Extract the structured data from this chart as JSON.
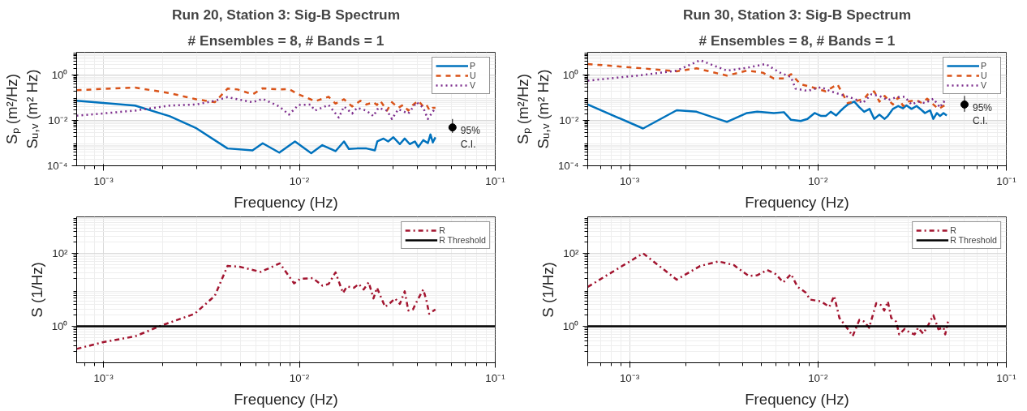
{
  "chart_data": [
    {
      "type": "line",
      "title": "Run 20, Station 3: Sig-B Spectrum",
      "subtitle": "# Ensembles = 8, # Bands = 1",
      "xlabel": "Frequency (Hz)",
      "ylabel": "Sₚ (m²/Hz)\nSᵤ,ᵥ (m² Hz)",
      "log": "xy",
      "grid": true,
      "legend": "top right",
      "xlim": [
        0.00073,
        0.1
      ],
      "ylim": [
        0.0001,
        10
      ],
      "xticks": [
        {
          "value": 0.001,
          "label": "10⁻³"
        },
        {
          "value": 0.01,
          "label": "10⁻²"
        },
        {
          "value": 0.1,
          "label": "10⁻¹"
        }
      ],
      "yticks": [
        {
          "value": 0.0001,
          "label": "10⁻⁴"
        },
        {
          "value": 0.01,
          "label": "10⁻²"
        },
        {
          "value": 1,
          "label": "10⁰"
        }
      ],
      "annotations": [
        {
          "text": "95%\nC.I.",
          "x": 0.0605,
          "y": 0.0049
        }
      ],
      "series": [
        {
          "name": "P",
          "color": "#0072bd",
          "line_style": "solid",
          "x": [
            0.00073,
            0.00145,
            0.00218,
            0.00298,
            0.0043,
            0.00577,
            0.0065,
            0.0079,
            0.0095,
            0.0115,
            0.0131,
            0.0153,
            0.0169,
            0.0179,
            0.0197,
            0.022,
            0.0243,
            0.025,
            0.0269,
            0.0284,
            0.0302,
            0.0326,
            0.0345,
            0.0366,
            0.0389,
            0.0405,
            0.0429,
            0.0453,
            0.0467,
            0.048,
            0.0495
          ],
          "values": [
            0.073,
            0.045,
            0.0153,
            0.0045,
            0.00058,
            0.00048,
            0.00098,
            0.00038,
            0.00118,
            0.00036,
            0.00081,
            0.00044,
            0.00118,
            0.00055,
            0.00058,
            0.00058,
            0.00048,
            0.00118,
            0.00158,
            0.00118,
            0.0018,
            0.0009,
            0.00158,
            0.0009,
            0.00118,
            0.00067,
            0.00135,
            0.001,
            0.0024,
            0.00107,
            0.0018
          ]
        },
        {
          "name": "U",
          "color": "#d95319",
          "line_style": "dashed",
          "x": [
            0.00073,
            0.00145,
            0.00218,
            0.00298,
            0.0037,
            0.0043,
            0.00485,
            0.00577,
            0.0065,
            0.0079,
            0.00885,
            0.0099,
            0.0114,
            0.012,
            0.0141,
            0.0153,
            0.0169,
            0.0186,
            0.0205,
            0.022,
            0.0239,
            0.0249,
            0.0259,
            0.028,
            0.0297,
            0.032,
            0.0339,
            0.036,
            0.038,
            0.0405,
            0.0429,
            0.0445,
            0.0463,
            0.048,
            0.0495
          ],
          "values": [
            0.215,
            0.28,
            0.158,
            0.085,
            0.063,
            0.25,
            0.23,
            0.14,
            0.26,
            0.23,
            0.24,
            0.14,
            0.085,
            0.069,
            0.11,
            0.055,
            0.085,
            0.041,
            0.073,
            0.05,
            0.063,
            0.048,
            0.073,
            0.027,
            0.063,
            0.036,
            0.048,
            0.027,
            0.048,
            0.073,
            0.041,
            0.05,
            0.027,
            0.036,
            0.036
          ]
        },
        {
          "name": "V",
          "color": "#7e2f8e",
          "line_style": "dotted",
          "x": [
            0.00073,
            0.00145,
            0.00218,
            0.00298,
            0.0037,
            0.0043,
            0.00485,
            0.00577,
            0.0065,
            0.0079,
            0.00885,
            0.0099,
            0.0114,
            0.012,
            0.0141,
            0.0159,
            0.0169,
            0.0186,
            0.0197,
            0.022,
            0.0239,
            0.0253,
            0.028,
            0.0297,
            0.032,
            0.036,
            0.0397,
            0.0429,
            0.0453,
            0.0495
          ],
          "values": [
            0.016,
            0.027,
            0.045,
            0.05,
            0.073,
            0.106,
            0.085,
            0.063,
            0.089,
            0.041,
            0.018,
            0.048,
            0.05,
            0.027,
            0.048,
            0.0133,
            0.041,
            0.02,
            0.036,
            0.027,
            0.0153,
            0.036,
            0.027,
            0.0115,
            0.031,
            0.02,
            0.063,
            0.036,
            0.0115,
            0.036
          ]
        },
        {
          "type": "scatter",
          "marker": "circle",
          "color": "#000000",
          "x": [
            0.0605
          ],
          "values": [
            0.0049
          ],
          "errors": [
            [
              0.0028,
              0.0115
            ]
          ]
        }
      ]
    },
    {
      "type": "line",
      "title": "Run 30, Station 3: Sig-B Spectrum",
      "subtitle": "# Ensembles = 8, # Bands = 1",
      "xlabel": "Frequency (Hz)",
      "ylabel": "Sₚ (m²/Hz)\nSᵤ,ᵥ (m² Hz)",
      "log": "xy",
      "grid": true,
      "legend": "top right",
      "xlim": [
        0.0006,
        0.1
      ],
      "ylim": [
        0.0001,
        10
      ],
      "xticks": [
        {
          "value": 0.001,
          "label": "10⁻³"
        },
        {
          "value": 0.01,
          "label": "10⁻²"
        },
        {
          "value": 0.1,
          "label": "10⁻¹"
        }
      ],
      "yticks": [
        {
          "value": 0.0001,
          "label": "10⁻⁴"
        },
        {
          "value": 0.01,
          "label": "10⁻²"
        },
        {
          "value": 1,
          "label": "10⁰"
        }
      ],
      "annotations": [
        {
          "text": "95%\nC.I.",
          "x": 0.06,
          "y": 0.05
        }
      ],
      "series": [
        {
          "name": "P",
          "color": "#0072bd",
          "line_style": "solid",
          "x": [
            0.0006,
            0.00118,
            0.00178,
            0.00227,
            0.00329,
            0.0042,
            0.00476,
            0.00584,
            0.0066,
            0.0072,
            0.0081,
            0.0088,
            0.0096,
            0.0104,
            0.011,
            0.0117,
            0.0125,
            0.0133,
            0.0138,
            0.0144,
            0.0156,
            0.0166,
            0.0176,
            0.0188,
            0.0199,
            0.0212,
            0.0226,
            0.0235,
            0.025,
            0.0267,
            0.0283,
            0.0295,
            0.0314,
            0.0334,
            0.0356,
            0.037,
            0.0394,
            0.041,
            0.0428,
            0.0445,
            0.0464,
            0.0483
          ],
          "values": [
            0.05,
            0.0044,
            0.028,
            0.024,
            0.0086,
            0.021,
            0.024,
            0.021,
            0.023,
            0.0106,
            0.0094,
            0.0116,
            0.021,
            0.0156,
            0.0156,
            0.024,
            0.0165,
            0.028,
            0.0375,
            0.05,
            0.067,
            0.0375,
            0.024,
            0.032,
            0.0116,
            0.018,
            0.0116,
            0.0156,
            0.032,
            0.043,
            0.034,
            0.046,
            0.032,
            0.043,
            0.028,
            0.021,
            0.028,
            0.0116,
            0.021,
            0.0156,
            0.021,
            0.0165
          ]
        },
        {
          "name": "U",
          "color": "#d95319",
          "line_style": "dashed",
          "x": [
            0.0006,
            0.00118,
            0.00178,
            0.00227,
            0.00329,
            0.0042,
            0.0051,
            0.00584,
            0.0066,
            0.0072,
            0.0081,
            0.0096,
            0.011,
            0.0127,
            0.0144,
            0.0156,
            0.0176,
            0.0184,
            0.0199,
            0.0212,
            0.0226,
            0.025,
            0.0267,
            0.0283,
            0.03,
            0.0334,
            0.0356,
            0.038,
            0.041,
            0.0436,
            0.0464,
            0.0483
          ],
          "values": [
            3.05,
            1.96,
            1.46,
            1.96,
            0.94,
            1.55,
            1.26,
            0.7,
            0.7,
            1.09,
            0.39,
            0.27,
            0.19,
            0.39,
            0.058,
            0.067,
            0.09,
            0.14,
            0.19,
            0.067,
            0.12,
            0.05,
            0.105,
            0.043,
            0.067,
            0.078,
            0.058,
            0.09,
            0.05,
            0.032,
            0.043,
            0.05
          ]
        },
        {
          "name": "V",
          "color": "#7e2f8e",
          "line_style": "dotted",
          "x": [
            0.0006,
            0.00118,
            0.00178,
            0.00237,
            0.00329,
            0.0042,
            0.00528,
            0.0063,
            0.0072,
            0.0076,
            0.0088,
            0.0104,
            0.0117,
            0.0135,
            0.0156,
            0.0173,
            0.0192,
            0.0212,
            0.0235,
            0.0262,
            0.0289,
            0.0314,
            0.034,
            0.037,
            0.041,
            0.0445,
            0.0464,
            0.0483
          ],
          "values": [
            0.56,
            1.0,
            1.55,
            4.47,
            1.55,
            2.08,
            3.05,
            1.26,
            0.81,
            0.25,
            0.2,
            0.29,
            0.19,
            0.13,
            0.09,
            0.058,
            0.14,
            0.12,
            0.078,
            0.105,
            0.11,
            0.05,
            0.067,
            0.058,
            0.09,
            0.037,
            0.067,
            0.058
          ]
        },
        {
          "type": "scatter",
          "marker": "circle",
          "color": "#000000",
          "x": [
            0.06
          ],
          "values": [
            0.05
          ],
          "errors": [
            [
              0.024,
              0.12
            ]
          ]
        }
      ]
    },
    {
      "type": "line",
      "xlabel": "Frequency (Hz)",
      "ylabel": "S (1/Hz)",
      "log": "xy",
      "grid": true,
      "legend": "top right",
      "xlim": [
        0.00073,
        0.1
      ],
      "ylim": [
        0.1,
        1000
      ],
      "xticks": [
        {
          "value": 0.001,
          "label": "10⁻³"
        },
        {
          "value": 0.01,
          "label": "10⁻²"
        },
        {
          "value": 0.1,
          "label": "10⁻¹"
        }
      ],
      "yticks": [
        {
          "value": 1,
          "label": "10⁰"
        },
        {
          "value": 100,
          "label": "10²"
        }
      ],
      "series": [
        {
          "name": "R",
          "color": "#a2142f",
          "line_style": "dashdot",
          "x": [
            0.00073,
            0.001,
            0.00145,
            0.00198,
            0.00292,
            0.0037,
            0.0043,
            0.00494,
            0.00635,
            0.00795,
            0.0094,
            0.0101,
            0.0117,
            0.0131,
            0.0141,
            0.0153,
            0.0167,
            0.0175,
            0.019,
            0.0201,
            0.0213,
            0.0226,
            0.0239,
            0.0249,
            0.0274,
            0.029,
            0.0308,
            0.0326,
            0.0345,
            0.036,
            0.038,
            0.0401,
            0.0429,
            0.0445,
            0.046,
            0.0495
          ],
          "values": [
            0.24,
            0.37,
            0.53,
            1.05,
            2.2,
            6.8,
            45,
            43,
            31,
            53,
            15,
            20,
            21,
            13,
            14.4,
            30,
            8.2,
            12.3,
            11.4,
            14.4,
            10.2,
            16.1,
            5.8,
            11.4,
            3.4,
            4.3,
            5.8,
            4.1,
            9.1,
            2.7,
            2.9,
            5.2,
            10.2,
            5.2,
            2.2,
            2.9
          ]
        },
        {
          "name": "R Threshold",
          "color": "#000000",
          "line_style": "solid",
          "x": [
            0.00073,
            0.1
          ],
          "values": [
            1,
            1
          ]
        }
      ]
    },
    {
      "type": "line",
      "xlabel": "Frequency (Hz)",
      "ylabel": "S (1/Hz)",
      "log": "xy",
      "grid": true,
      "legend": "top right",
      "xlim": [
        0.0006,
        0.1
      ],
      "ylim": [
        0.1,
        1000
      ],
      "xticks": [
        {
          "value": 0.001,
          "label": "10⁻³"
        },
        {
          "value": 0.01,
          "label": "10⁻²"
        },
        {
          "value": 0.1,
          "label": "10⁻¹"
        }
      ],
      "yticks": [
        {
          "value": 1,
          "label": "10⁰"
        },
        {
          "value": 100,
          "label": "10²"
        }
      ],
      "series": [
        {
          "name": "R",
          "color": "#a2142f",
          "line_style": "dashdot",
          "x": [
            0.0006,
            0.00118,
            0.00178,
            0.00237,
            0.00296,
            0.00357,
            0.00429,
            0.00476,
            0.00538,
            0.00596,
            0.00655,
            0.0072,
            0.0078,
            0.0086,
            0.0091,
            0.0104,
            0.0115,
            0.0122,
            0.013,
            0.0144,
            0.0153,
            0.0166,
            0.0176,
            0.0187,
            0.0204,
            0.0216,
            0.0225,
            0.0235,
            0.0245,
            0.026,
            0.027,
            0.0289,
            0.0306,
            0.0326,
            0.034,
            0.0362,
            0.0385,
            0.041,
            0.0436,
            0.0464,
            0.0474,
            0.049
          ],
          "values": [
            12,
            100,
            19,
            45,
            60,
            48,
            24,
            25,
            35,
            27,
            16,
            27,
            12,
            8.5,
            5.4,
            4.8,
            3.4,
            6.8,
            1.7,
            0.85,
            0.54,
            1.5,
            1.35,
            0.91,
            4.3,
            3.8,
            2.7,
            4.8,
            1.7,
            1.35,
            0.6,
            0.85,
            0.68,
            0.6,
            0.91,
            0.63,
            1.07,
            2.0,
            0.83,
            0.93,
            0.6,
            1.35
          ]
        },
        {
          "name": "R Threshold",
          "color": "#000000",
          "line_style": "solid",
          "x": [
            0.0006,
            0.1
          ],
          "values": [
            1,
            1
          ]
        }
      ]
    }
  ]
}
